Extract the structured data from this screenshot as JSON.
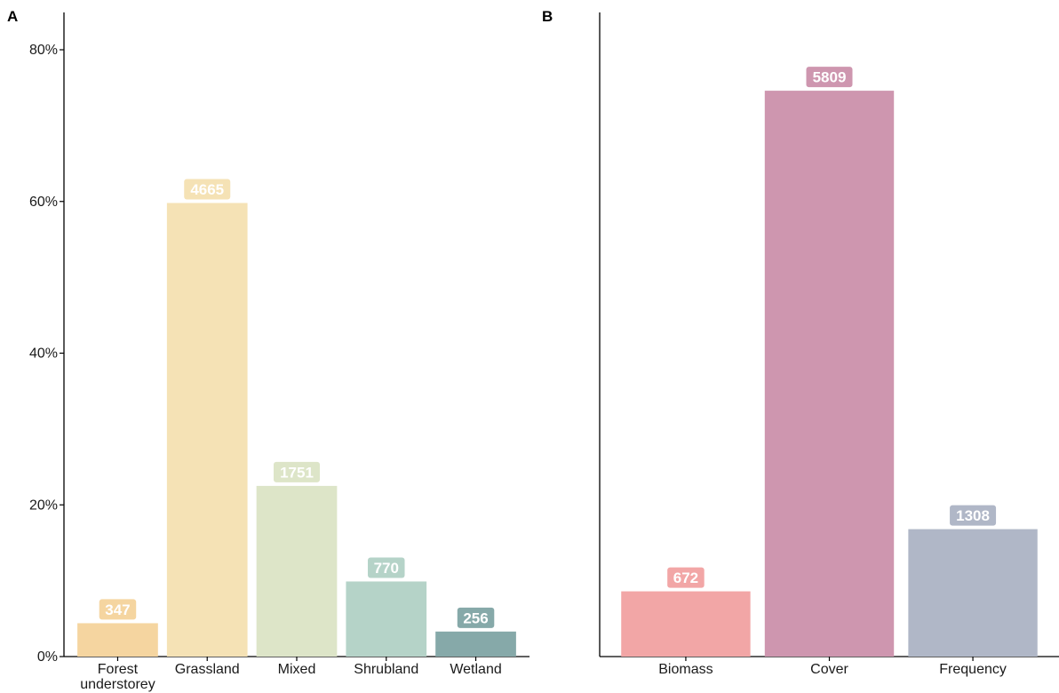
{
  "panels": [
    {
      "tag": "A"
    },
    {
      "tag": "B"
    }
  ],
  "chart_data": [
    {
      "type": "bar",
      "panel": "A",
      "title": "",
      "xlabel": "",
      "ylabel": "",
      "ylim": [
        0,
        80
      ],
      "y_unit": "%",
      "y_ticks": [
        0,
        20,
        40,
        60,
        80
      ],
      "y_tick_labels": [
        "0%",
        "20%",
        "40%",
        "60%",
        "80%"
      ],
      "grid": false,
      "categories": [
        "Forest understorey",
        "Grassland",
        "Mixed",
        "Shrubland",
        "Wetland"
      ],
      "values": [
        4.4,
        59.8,
        22.5,
        9.9,
        3.3
      ],
      "counts": [
        "347",
        "4665",
        "1751",
        "770",
        "256"
      ],
      "colors": [
        "#F5D5A0",
        "#F5E2B5",
        "#DDE5C8",
        "#B5D3C8",
        "#86A9A9"
      ]
    },
    {
      "type": "bar",
      "panel": "B",
      "title": "",
      "xlabel": "",
      "ylabel": "",
      "ylim": [
        0,
        80
      ],
      "y_unit": "%",
      "grid": false,
      "categories": [
        "Biomass",
        "Cover",
        "Frequency"
      ],
      "values": [
        8.6,
        74.6,
        16.8
      ],
      "counts": [
        "672",
        "5809",
        "1308"
      ],
      "colors": [
        "#F2A6A6",
        "#CE96AF",
        "#B0B7C7"
      ]
    }
  ]
}
